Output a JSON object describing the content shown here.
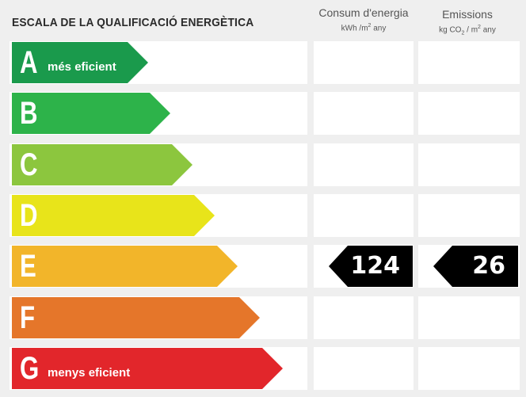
{
  "header": {
    "title": "ESCALA DE LA QUALIFICACIÓ ENERGÈTICA",
    "consum_title": "Consum d'energia",
    "consum_unit_a": "kWh /m",
    "consum_unit_sup": "2",
    "consum_unit_b": " any",
    "emis_title": "Emissions",
    "emis_unit_a": "kg CO",
    "emis_unit_sub": "2",
    "emis_unit_b": " / m",
    "emis_unit_sup": "2",
    "emis_unit_c": " any"
  },
  "ratings": [
    {
      "letter": "A",
      "sublabel": "més eficient",
      "color": "#1a9a4c"
    },
    {
      "letter": "B",
      "sublabel": "",
      "color": "#2db34a"
    },
    {
      "letter": "C",
      "sublabel": "",
      "color": "#8cc63e"
    },
    {
      "letter": "D",
      "sublabel": "",
      "color": "#e8e41a"
    },
    {
      "letter": "E",
      "sublabel": "",
      "color": "#f2b52a"
    },
    {
      "letter": "F",
      "sublabel": "",
      "color": "#e5762a"
    },
    {
      "letter": "G",
      "sublabel": "menys eficient",
      "color": "#e2262b"
    }
  ],
  "current": {
    "rating": "E",
    "consum_value": "124",
    "emissions_value": "26"
  }
}
